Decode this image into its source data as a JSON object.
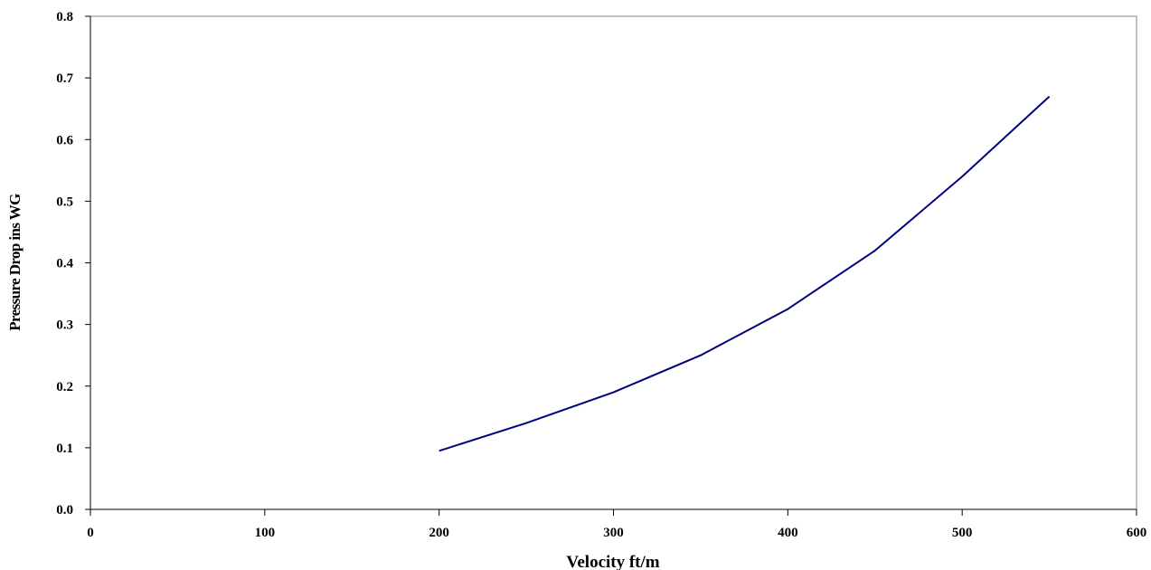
{
  "chart_data": {
    "type": "line",
    "title": "",
    "xlabel": "Velocity ft/m",
    "ylabel": "Pressure Drop ins WG",
    "xlim": [
      0,
      600
    ],
    "ylim": [
      0,
      0.8
    ],
    "x_ticks": [
      "0",
      "100",
      "200",
      "300",
      "400",
      "500",
      "600"
    ],
    "y_ticks": [
      "0.0",
      "0.1",
      "0.2",
      "0.3",
      "0.4",
      "0.5",
      "0.6",
      "0.7",
      "0.8"
    ],
    "grid": false,
    "legend": "none",
    "series": [
      {
        "color": "#000080",
        "x": [
          200,
          250,
          300,
          350,
          400,
          450,
          500,
          550
        ],
        "y": [
          0.095,
          0.14,
          0.19,
          0.25,
          0.325,
          0.42,
          0.54,
          0.67
        ]
      }
    ]
  }
}
